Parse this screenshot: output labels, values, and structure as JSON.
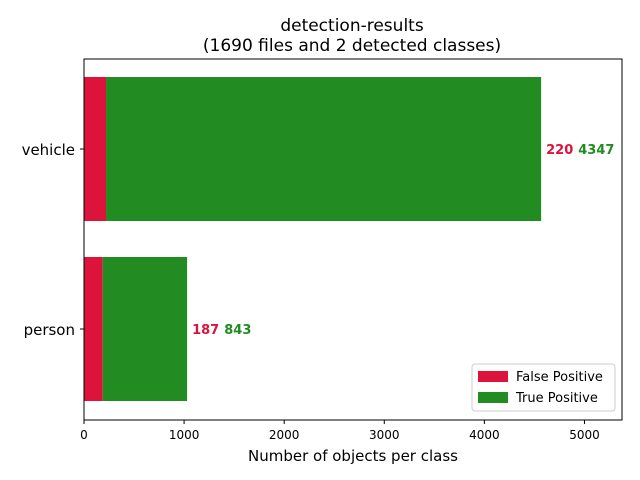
{
  "chart_data": {
    "type": "bar",
    "orientation": "horizontal",
    "stacked": true,
    "title": "detection-results",
    "subtitle": "(1690 files and 2 detected classes)",
    "xlabel": "Number of objects per class",
    "ylabel": "",
    "categories": [
      "person",
      "vehicle"
    ],
    "xlim": [
      0,
      5375
    ],
    "xticks": [
      "0",
      "1000",
      "2000",
      "3000",
      "4000",
      "5000"
    ],
    "xtick_values": [
      0,
      1000,
      2000,
      3000,
      4000,
      5000
    ],
    "grid": false,
    "legend_position": "bottom-right",
    "series": [
      {
        "name": "False Positive",
        "color": "#dc143c",
        "values": [
          187,
          220
        ]
      },
      {
        "name": "True Positive",
        "color": "#228b22",
        "values": [
          843,
          4347
        ]
      }
    ],
    "data_labels": [
      {
        "category": "person",
        "fp": "187",
        "tp": "843"
      },
      {
        "category": "vehicle",
        "fp": "220",
        "tp": "4347"
      }
    ]
  }
}
